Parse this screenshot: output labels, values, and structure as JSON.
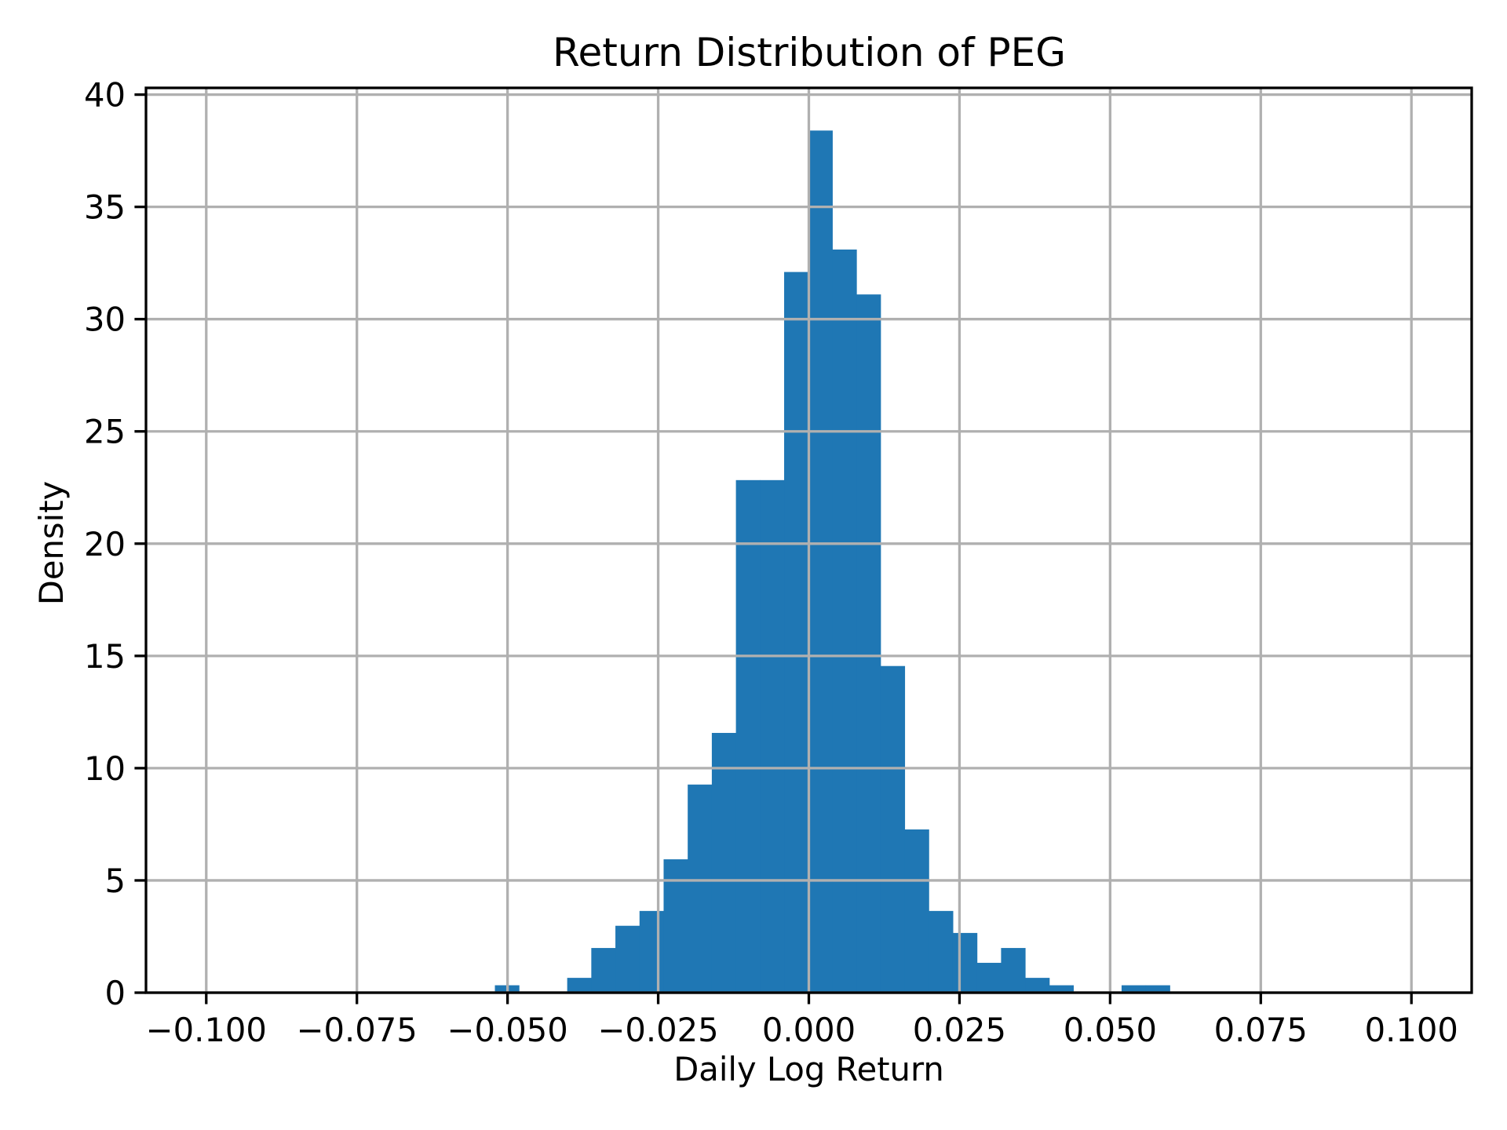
{
  "figure": {
    "background": "#ffffff"
  },
  "chart_data": {
    "type": "bar",
    "subtype": "histogram",
    "title": "Return Distribution of PEG",
    "xlabel": "Daily Log Return",
    "ylabel": "Density",
    "xlim": [
      -0.11,
      0.11
    ],
    "ylim": [
      0,
      40.3
    ],
    "grid": true,
    "legend": null,
    "bar_color": "#1f77b4",
    "grid_color": "#b0b0b0",
    "x_ticks": [
      -0.1,
      -0.075,
      -0.05,
      -0.025,
      0.0,
      0.025,
      0.05,
      0.075,
      0.1
    ],
    "x_tick_labels": [
      "−0.100",
      "−0.075",
      "−0.050",
      "−0.025",
      "0.000",
      "0.025",
      "0.050",
      "0.075",
      "0.100"
    ],
    "y_ticks": [
      0,
      5,
      10,
      15,
      20,
      25,
      30,
      35,
      40
    ],
    "y_tick_labels": [
      "0",
      "5",
      "10",
      "15",
      "20",
      "25",
      "30",
      "35",
      "40"
    ],
    "bin_edges": [
      -0.0521,
      -0.0481,
      -0.0441,
      -0.0401,
      -0.0361,
      -0.0321,
      -0.0281,
      -0.0241,
      -0.0201,
      -0.0161,
      -0.0121,
      -0.0081,
      -0.0041,
      -0.0001,
      0.0039,
      0.0079,
      0.0119,
      0.0159,
      0.0199,
      0.0239,
      0.0279,
      0.0319,
      0.0359,
      0.0399,
      0.0439,
      0.0479,
      0.0519,
      0.0559,
      0.0599
    ],
    "values": [
      0.33,
      0,
      0,
      0.66,
      1.99,
      2.98,
      3.64,
      5.94,
      9.27,
      11.57,
      22.83,
      22.83,
      32.1,
      38.4,
      33.1,
      31.1,
      14.55,
      7.27,
      3.64,
      2.66,
      1.33,
      1.99,
      0.66,
      0.33,
      0,
      0,
      0.33,
      0.33
    ]
  }
}
